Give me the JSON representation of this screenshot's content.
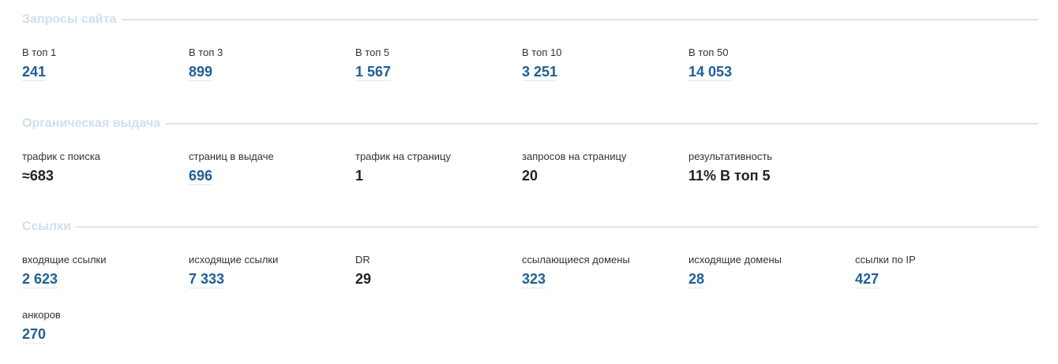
{
  "sections": [
    {
      "title": "Запросы сайта",
      "items": [
        {
          "label": "В топ 1",
          "value": "241",
          "link": true
        },
        {
          "label": "В топ 3",
          "value": "899",
          "link": true
        },
        {
          "label": "В топ 5",
          "value": "1 567",
          "link": true
        },
        {
          "label": "В топ 10",
          "value": "3 251",
          "link": true
        },
        {
          "label": "В топ 50",
          "value": "14 053",
          "link": true
        }
      ]
    },
    {
      "title": "Органическая выдача",
      "items": [
        {
          "label": "трафик с поиска",
          "value": "≈683",
          "link": false
        },
        {
          "label": "страниц в выдаче",
          "value": "696",
          "link": true
        },
        {
          "label": "трафик на страницу",
          "value": "1",
          "link": false
        },
        {
          "label": "запросов на страницу",
          "value": "20",
          "link": false
        },
        {
          "label": "результативность",
          "value": "11% В топ 5",
          "link": false
        }
      ]
    },
    {
      "title": "Ссылки",
      "items": [
        {
          "label": "входящие ссылки",
          "value": "2 623",
          "link": true
        },
        {
          "label": "исходящие ссылки",
          "value": "7 333",
          "link": true
        },
        {
          "label": "DR",
          "value": "29",
          "link": false
        },
        {
          "label": "ссылающиеся домены",
          "value": "323",
          "link": true
        },
        {
          "label": "исходящие домены",
          "value": "28",
          "link": true
        },
        {
          "label": "ссылки по IP",
          "value": "427",
          "link": true
        },
        {
          "label": "анкоров",
          "value": "270",
          "link": true
        }
      ]
    }
  ]
}
